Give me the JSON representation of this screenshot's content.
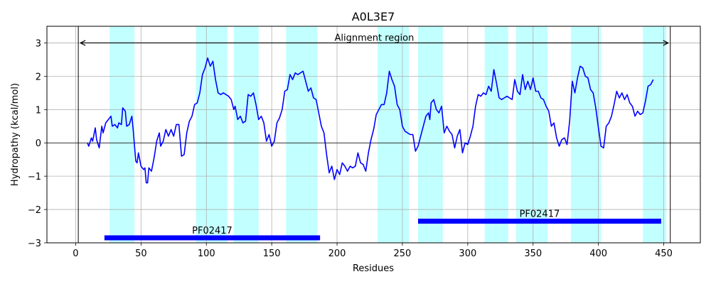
{
  "chart_data": {
    "type": "line",
    "title": "A0L3E7",
    "xlabel": "Residues",
    "ylabel": "Hydropathy (kcal/mol)",
    "xlim": [
      -22,
      478
    ],
    "ylim": [
      -3,
      3.5
    ],
    "xticks": [
      "0",
      "50",
      "100",
      "150",
      "200",
      "250",
      "300",
      "350",
      "400",
      "450"
    ],
    "yticks": [
      "−3",
      "−2",
      "−1",
      "0",
      "1",
      "2",
      "3"
    ],
    "grid": true,
    "colors": {
      "line": "#0000ff",
      "tm_region": "#c2ffff",
      "domain_bar": "#0000ff",
      "grid": "#b0b0b0"
    },
    "series": [
      {
        "values": [
          [
            9,
            0.0
          ],
          [
            10,
            -0.1
          ],
          [
            12,
            0.15
          ],
          [
            13,
            0.05
          ],
          [
            15,
            0.45
          ],
          [
            16,
            0.1
          ],
          [
            18,
            -0.15
          ],
          [
            20,
            0.5
          ],
          [
            21,
            0.3
          ],
          [
            23,
            0.6
          ],
          [
            25,
            0.7
          ],
          [
            27,
            0.8
          ],
          [
            28,
            0.5
          ],
          [
            30,
            0.55
          ],
          [
            32,
            0.45
          ],
          [
            33,
            0.6
          ],
          [
            35,
            0.55
          ],
          [
            36,
            1.05
          ],
          [
            38,
            0.95
          ],
          [
            39,
            0.5
          ],
          [
            41,
            0.55
          ],
          [
            43,
            0.8
          ],
          [
            44,
            0.4
          ],
          [
            46,
            -0.55
          ],
          [
            47,
            -0.6
          ],
          [
            48,
            -0.3
          ],
          [
            50,
            -0.7
          ],
          [
            52,
            -0.8
          ],
          [
            53,
            -0.75
          ],
          [
            54,
            -1.2
          ],
          [
            55,
            -1.2
          ],
          [
            56,
            -0.75
          ],
          [
            58,
            -0.85
          ],
          [
            60,
            -0.45
          ],
          [
            62,
            0.05
          ],
          [
            64,
            0.3
          ],
          [
            65,
            -0.1
          ],
          [
            67,
            0.05
          ],
          [
            69,
            0.4
          ],
          [
            71,
            0.2
          ],
          [
            73,
            0.4
          ],
          [
            75,
            0.2
          ],
          [
            77,
            0.55
          ],
          [
            79,
            0.55
          ],
          [
            81,
            -0.4
          ],
          [
            83,
            -0.35
          ],
          [
            85,
            0.3
          ],
          [
            87,
            0.65
          ],
          [
            89,
            0.8
          ],
          [
            91,
            1.15
          ],
          [
            93,
            1.2
          ],
          [
            95,
            1.5
          ],
          [
            97,
            2.05
          ],
          [
            99,
            2.25
          ],
          [
            101,
            2.55
          ],
          [
            103,
            2.3
          ],
          [
            105,
            2.45
          ],
          [
            107,
            1.9
          ],
          [
            109,
            1.5
          ],
          [
            111,
            1.45
          ],
          [
            113,
            1.5
          ],
          [
            115,
            1.45
          ],
          [
            117,
            1.4
          ],
          [
            119,
            1.3
          ],
          [
            121,
            1.0
          ],
          [
            122,
            1.1
          ],
          [
            124,
            0.7
          ],
          [
            126,
            0.8
          ],
          [
            128,
            0.6
          ],
          [
            130,
            0.65
          ],
          [
            132,
            1.45
          ],
          [
            134,
            1.4
          ],
          [
            136,
            1.5
          ],
          [
            138,
            1.15
          ],
          [
            140,
            0.7
          ],
          [
            142,
            0.8
          ],
          [
            144,
            0.6
          ],
          [
            146,
            0.05
          ],
          [
            148,
            0.25
          ],
          [
            150,
            -0.1
          ],
          [
            152,
            0.05
          ],
          [
            154,
            0.6
          ],
          [
            156,
            0.75
          ],
          [
            158,
            1.0
          ],
          [
            160,
            1.55
          ],
          [
            162,
            1.6
          ],
          [
            164,
            2.05
          ],
          [
            166,
            1.9
          ],
          [
            168,
            2.1
          ],
          [
            170,
            2.05
          ],
          [
            172,
            2.1
          ],
          [
            174,
            2.15
          ],
          [
            176,
            1.85
          ],
          [
            178,
            1.55
          ],
          [
            180,
            1.65
          ],
          [
            182,
            1.35
          ],
          [
            184,
            1.3
          ],
          [
            186,
            0.9
          ],
          [
            188,
            0.5
          ],
          [
            190,
            0.3
          ],
          [
            192,
            -0.35
          ],
          [
            194,
            -0.9
          ],
          [
            196,
            -0.7
          ],
          [
            198,
            -1.1
          ],
          [
            200,
            -0.8
          ],
          [
            202,
            -0.95
          ],
          [
            204,
            -0.6
          ],
          [
            206,
            -0.7
          ],
          [
            208,
            -0.85
          ],
          [
            210,
            -0.7
          ],
          [
            212,
            -0.75
          ],
          [
            214,
            -0.7
          ],
          [
            216,
            -0.3
          ],
          [
            218,
            -0.6
          ],
          [
            220,
            -0.65
          ],
          [
            222,
            -0.85
          ],
          [
            224,
            -0.3
          ],
          [
            226,
            0.1
          ],
          [
            228,
            0.4
          ],
          [
            230,
            0.85
          ],
          [
            232,
            1.0
          ],
          [
            234,
            1.15
          ],
          [
            236,
            1.15
          ],
          [
            238,
            1.5
          ],
          [
            240,
            2.15
          ],
          [
            242,
            1.9
          ],
          [
            244,
            1.7
          ],
          [
            246,
            1.15
          ],
          [
            248,
            1.0
          ],
          [
            250,
            0.5
          ],
          [
            252,
            0.35
          ],
          [
            254,
            0.3
          ],
          [
            256,
            0.25
          ],
          [
            258,
            0.25
          ],
          [
            260,
            -0.25
          ],
          [
            262,
            -0.1
          ],
          [
            264,
            0.2
          ],
          [
            266,
            0.5
          ],
          [
            268,
            0.8
          ],
          [
            270,
            0.9
          ],
          [
            271,
            0.7
          ],
          [
            272,
            1.2
          ],
          [
            274,
            1.3
          ],
          [
            276,
            1.0
          ],
          [
            278,
            0.9
          ],
          [
            280,
            1.1
          ],
          [
            282,
            0.3
          ],
          [
            284,
            0.5
          ],
          [
            286,
            0.35
          ],
          [
            288,
            0.25
          ],
          [
            290,
            -0.15
          ],
          [
            292,
            0.2
          ],
          [
            294,
            0.4
          ],
          [
            296,
            -0.3
          ],
          [
            298,
            0.0
          ],
          [
            300,
            -0.05
          ],
          [
            302,
            0.2
          ],
          [
            304,
            0.5
          ],
          [
            306,
            1.1
          ],
          [
            308,
            1.45
          ],
          [
            310,
            1.4
          ],
          [
            312,
            1.5
          ],
          [
            314,
            1.45
          ],
          [
            316,
            1.7
          ],
          [
            318,
            1.55
          ],
          [
            320,
            2.2
          ],
          [
            322,
            1.8
          ],
          [
            324,
            1.35
          ],
          [
            326,
            1.3
          ],
          [
            328,
            1.35
          ],
          [
            330,
            1.4
          ],
          [
            332,
            1.35
          ],
          [
            334,
            1.3
          ],
          [
            336,
            1.9
          ],
          [
            338,
            1.55
          ],
          [
            340,
            1.45
          ],
          [
            342,
            2.05
          ],
          [
            344,
            1.6
          ],
          [
            346,
            1.85
          ],
          [
            348,
            1.6
          ],
          [
            350,
            1.95
          ],
          [
            352,
            1.55
          ],
          [
            354,
            1.55
          ],
          [
            356,
            1.35
          ],
          [
            358,
            1.3
          ],
          [
            360,
            1.1
          ],
          [
            362,
            0.95
          ],
          [
            364,
            0.5
          ],
          [
            366,
            0.6
          ],
          [
            368,
            0.15
          ],
          [
            370,
            -0.1
          ],
          [
            372,
            0.1
          ],
          [
            374,
            0.15
          ],
          [
            376,
            -0.05
          ],
          [
            378,
            0.65
          ],
          [
            380,
            1.85
          ],
          [
            382,
            1.5
          ],
          [
            384,
            1.95
          ],
          [
            386,
            2.3
          ],
          [
            388,
            2.25
          ],
          [
            390,
            2.0
          ],
          [
            392,
            1.95
          ],
          [
            394,
            1.6
          ],
          [
            396,
            1.5
          ],
          [
            398,
            1.05
          ],
          [
            400,
            0.45
          ],
          [
            402,
            -0.1
          ],
          [
            404,
            -0.15
          ],
          [
            406,
            0.5
          ],
          [
            408,
            0.6
          ],
          [
            410,
            0.8
          ],
          [
            412,
            1.15
          ],
          [
            414,
            1.55
          ],
          [
            416,
            1.35
          ],
          [
            418,
            1.5
          ],
          [
            420,
            1.3
          ],
          [
            422,
            1.45
          ],
          [
            424,
            1.2
          ],
          [
            426,
            1.1
          ],
          [
            428,
            0.8
          ],
          [
            430,
            0.95
          ],
          [
            432,
            0.85
          ],
          [
            434,
            0.9
          ],
          [
            436,
            1.25
          ],
          [
            438,
            1.7
          ],
          [
            440,
            1.75
          ],
          [
            442,
            1.9
          ]
        ]
      }
    ],
    "tm_regions": [
      [
        26,
        45
      ],
      [
        92,
        116
      ],
      [
        121,
        140
      ],
      [
        161,
        185
      ],
      [
        231,
        255
      ],
      [
        262,
        281
      ],
      [
        313,
        331
      ],
      [
        337,
        361
      ],
      [
        379,
        402
      ],
      [
        434,
        452
      ]
    ],
    "alignment_region": {
      "label": "Alignment region",
      "start": 2,
      "end": 455
    },
    "domains": [
      {
        "label": "PF02417",
        "start": 22,
        "end": 187,
        "y": -2.85
      },
      {
        "label": "PF02417",
        "start": 262,
        "end": 448,
        "y": -2.35
      }
    ]
  }
}
